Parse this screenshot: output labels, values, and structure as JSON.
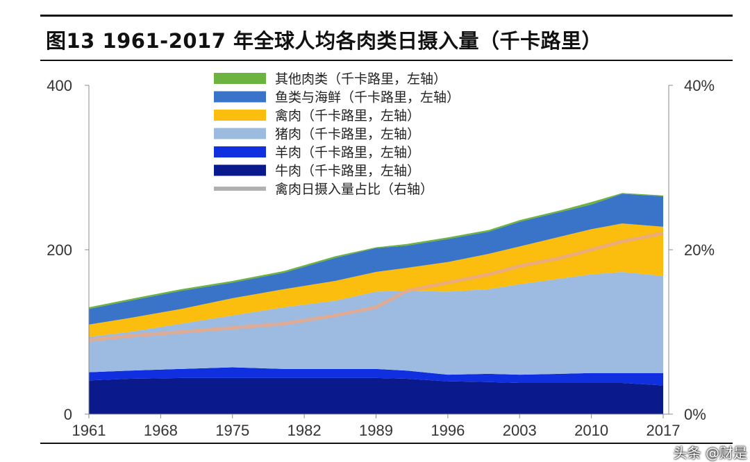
{
  "title": "图13 1961-2017 年全球人均各肉类日摄入量（千卡路里）",
  "watermark": "头条 @财是",
  "chart_data": {
    "type": "area",
    "stacked": true,
    "x": [
      1961,
      1965,
      1970,
      1975,
      1980,
      1985,
      1989,
      1992,
      1996,
      2000,
      2003,
      2007,
      2010,
      2013,
      2017
    ],
    "x_ticks": [
      "1961",
      "1968",
      "1975",
      "1982",
      "1989",
      "1996",
      "2003",
      "2010",
      "2017"
    ],
    "left_axis": {
      "range": [
        0,
        400
      ],
      "ticks": [
        "0",
        "200",
        "400"
      ]
    },
    "right_axis": {
      "range": [
        0,
        40
      ],
      "ticks": [
        "0%",
        "20%",
        "40%"
      ]
    },
    "grid": false,
    "legend_position": "top-center",
    "series": [
      {
        "name": "牛肉（千卡路里，左轴）",
        "color": "#0a1a8c",
        "axis": "left",
        "values": [
          41,
          43,
          44,
          44,
          44,
          44,
          44,
          43,
          40,
          39,
          38,
          38,
          38,
          38,
          35
        ]
      },
      {
        "name": "羊肉（千卡路里，左轴）",
        "color": "#1030e0",
        "axis": "left",
        "values": [
          10,
          10,
          11,
          13,
          11,
          11,
          11,
          10,
          8,
          10,
          10,
          11,
          12,
          12,
          15
        ]
      },
      {
        "name": "猪肉（千卡路里，左轴）",
        "color": "#9dbbe0",
        "axis": "left",
        "values": [
          43,
          47,
          55,
          63,
          75,
          83,
          94,
          97,
          101,
          103,
          110,
          116,
          120,
          123,
          118
        ]
      },
      {
        "name": "禽肉（千卡路里，左轴）",
        "color": "#fbbd0e",
        "axis": "left",
        "values": [
          15,
          17,
          18,
          21,
          22,
          24,
          24,
          28,
          36,
          43,
          46,
          51,
          55,
          59,
          60
        ]
      },
      {
        "name": "鱼类与海鲜（千卡路里，左轴）",
        "color": "#3a74c8",
        "axis": "left",
        "values": [
          19,
          21,
          22,
          19,
          20,
          28,
          29,
          27,
          28,
          27,
          30,
          30,
          30,
          36,
          37
        ]
      },
      {
        "name": "其他肉类（千卡路里，左轴）",
        "color": "#6db33f",
        "axis": "left",
        "values": [
          2,
          2,
          2,
          2,
          2,
          2,
          1,
          2,
          2,
          2,
          2,
          2,
          3,
          1,
          1
        ]
      },
      {
        "name": "禽肉日摄入量占比（右轴）",
        "color": "#e9a98a",
        "axis": "right",
        "type": "line",
        "values": [
          9,
          9.5,
          10,
          10.5,
          11,
          12,
          13,
          15,
          16,
          17,
          18,
          19,
          20,
          21,
          22
        ]
      }
    ]
  }
}
